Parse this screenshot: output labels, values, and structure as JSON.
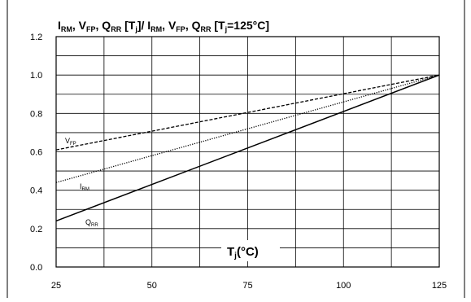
{
  "chart_data": {
    "type": "line",
    "title_parts": {
      "I": "I",
      "RM": "RM",
      "c1": ", V",
      "FP": "FP",
      "c2": ", Q",
      "RR": "RR",
      "s1": " [T",
      "j": "j",
      "s2": "]/ I",
      "RM2": "RM",
      "c3": ", V",
      "FP2": "FP",
      "c4": ", Q",
      "RR2": "RR",
      "s3": " [T",
      "j2": "j",
      "s4": "=125°C]"
    },
    "xlabel_parts": {
      "T": "T",
      "j": "j",
      "unit": "(°C)"
    },
    "xlim": [
      25,
      125
    ],
    "ylim": [
      0.0,
      1.2
    ],
    "x_ticks": [
      25,
      50,
      75,
      100,
      125
    ],
    "x_tick_labels": [
      "25",
      "50",
      "75",
      "100",
      "125"
    ],
    "y_ticks": [
      0.0,
      0.2,
      0.4,
      0.6,
      0.8,
      1.0,
      1.2
    ],
    "y_tick_labels": [
      "0.0",
      "0.2",
      "0.4",
      "0.6",
      "0.8",
      "1.0",
      "1.2"
    ],
    "grid": true,
    "series": [
      {
        "key": "vfp",
        "label_main": "V",
        "label_sub": "FP",
        "style": "dashed",
        "x": [
          25,
          125
        ],
        "y": [
          0.61,
          1.0
        ]
      },
      {
        "key": "irm",
        "label_main": "I",
        "label_sub": "RM",
        "style": "dotted",
        "x": [
          25,
          125
        ],
        "y": [
          0.44,
          1.0
        ]
      },
      {
        "key": "qrr",
        "label_main": "Q",
        "label_sub": "RR",
        "style": "solid",
        "x": [
          25,
          125
        ],
        "y": [
          0.24,
          1.0
        ]
      }
    ]
  }
}
